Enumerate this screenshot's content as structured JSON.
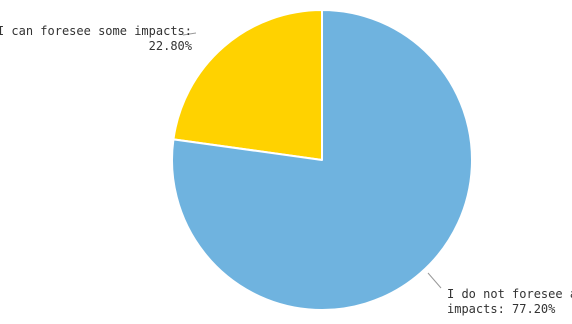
{
  "chart_data": {
    "type": "pie",
    "title": "",
    "slices": [
      {
        "label": "I can foresee some impacts",
        "value": 22.8,
        "display": "22.80%",
        "color": "#ffd200"
      },
      {
        "label": "I do not foresee an",
        "value": 77.2,
        "display": "impacts: 77.20%",
        "color": "#6fb3df"
      }
    ],
    "legend": "none",
    "data_labels": "outside"
  }
}
